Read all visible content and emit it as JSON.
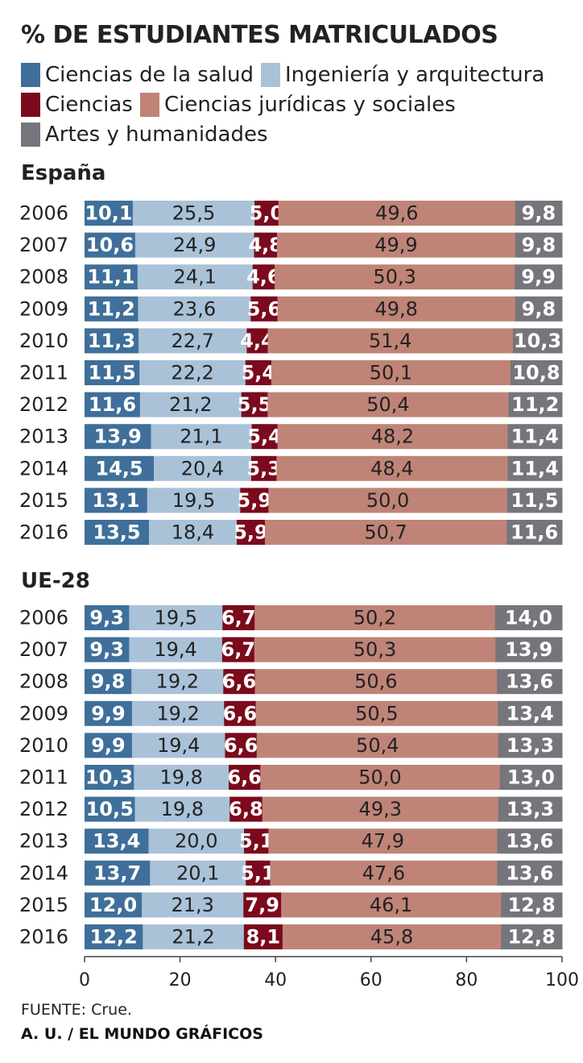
{
  "chart_data": {
    "type": "bar",
    "orientation": "horizontal",
    "stacked": true,
    "title": "% DE ESTUDIANTES MATRICULADOS",
    "xlim": [
      0,
      100
    ],
    "x_ticks": [
      "0",
      "20",
      "40",
      "60",
      "80",
      "100"
    ],
    "grid": false,
    "legend_position": "top",
    "series": [
      {
        "name": "Ciencias de la salud",
        "color": "#3f6f9a"
      },
      {
        "name": "Ingeniería y arquitectura",
        "color": "#a9c2d8"
      },
      {
        "name": "Ciencias",
        "color": "#7a0a1c"
      },
      {
        "name": "Ciencias jurídicas y sociales",
        "color": "#bf8477"
      },
      {
        "name": "Artes y humanidades",
        "color": "#75757b"
      }
    ],
    "panels": [
      {
        "title": "España",
        "categories": [
          "2006",
          "2007",
          "2008",
          "2009",
          "2010",
          "2011",
          "2012",
          "2013",
          "2014",
          "2015",
          "2016"
        ],
        "values": [
          [
            "10,1",
            "25,5",
            "5,0",
            "49,6",
            "9,8"
          ],
          [
            "10,6",
            "24,9",
            "4,8",
            "49,9",
            "9,8"
          ],
          [
            "11,1",
            "24,1",
            "4,6",
            "50,3",
            "9,9"
          ],
          [
            "11,2",
            "23,6",
            "5,6",
            "49,8",
            "9,8"
          ],
          [
            "11,3",
            "22,7",
            "4,4",
            "51,4",
            "10,3"
          ],
          [
            "11,5",
            "22,2",
            "5,4",
            "50,1",
            "10,8"
          ],
          [
            "11,6",
            "21,2",
            "5,5",
            "50,4",
            "11,2"
          ],
          [
            "13,9",
            "21,1",
            "5,4",
            "48,2",
            "11,4"
          ],
          [
            "14,5",
            "20,4",
            "5,3",
            "48,4",
            "11,4"
          ],
          [
            "13,1",
            "19,5",
            "5,9",
            "50,0",
            "11,5"
          ],
          [
            "13,5",
            "18,4",
            "5,9",
            "50,7",
            "11,6"
          ]
        ]
      },
      {
        "title": "UE-28",
        "categories": [
          "2006",
          "2007",
          "2008",
          "2009",
          "2010",
          "2011",
          "2012",
          "2013",
          "2014",
          "2015",
          "2016"
        ],
        "values": [
          [
            "9,3",
            "19,5",
            "6,7",
            "50,2",
            "14,0"
          ],
          [
            "9,3",
            "19,4",
            "6,7",
            "50,3",
            "13,9"
          ],
          [
            "9,8",
            "19,2",
            "6,6",
            "50,6",
            "13,6"
          ],
          [
            "9,9",
            "19,2",
            "6,6",
            "50,5",
            "13,4"
          ],
          [
            "9,9",
            "19,4",
            "6,6",
            "50,4",
            "13,3"
          ],
          [
            "10,3",
            "19,8",
            "6,6",
            "50,0",
            "13,0"
          ],
          [
            "10,5",
            "19,8",
            "6,8",
            "49,3",
            "13,3"
          ],
          [
            "13,4",
            "20,0",
            "5,1",
            "47,9",
            "13,6"
          ],
          [
            "13,7",
            "20,1",
            "5,1",
            "47,6",
            "13,6"
          ],
          [
            "12,0",
            "21,3",
            "7,9",
            "46,1",
            "12,8"
          ],
          [
            "12,2",
            "21,2",
            "8,1",
            "45,8",
            "12,8"
          ]
        ]
      }
    ]
  },
  "footer": {
    "source": "FUENTE: Crue.",
    "credit": "A. U. / EL MUNDO GRÁFICOS"
  }
}
